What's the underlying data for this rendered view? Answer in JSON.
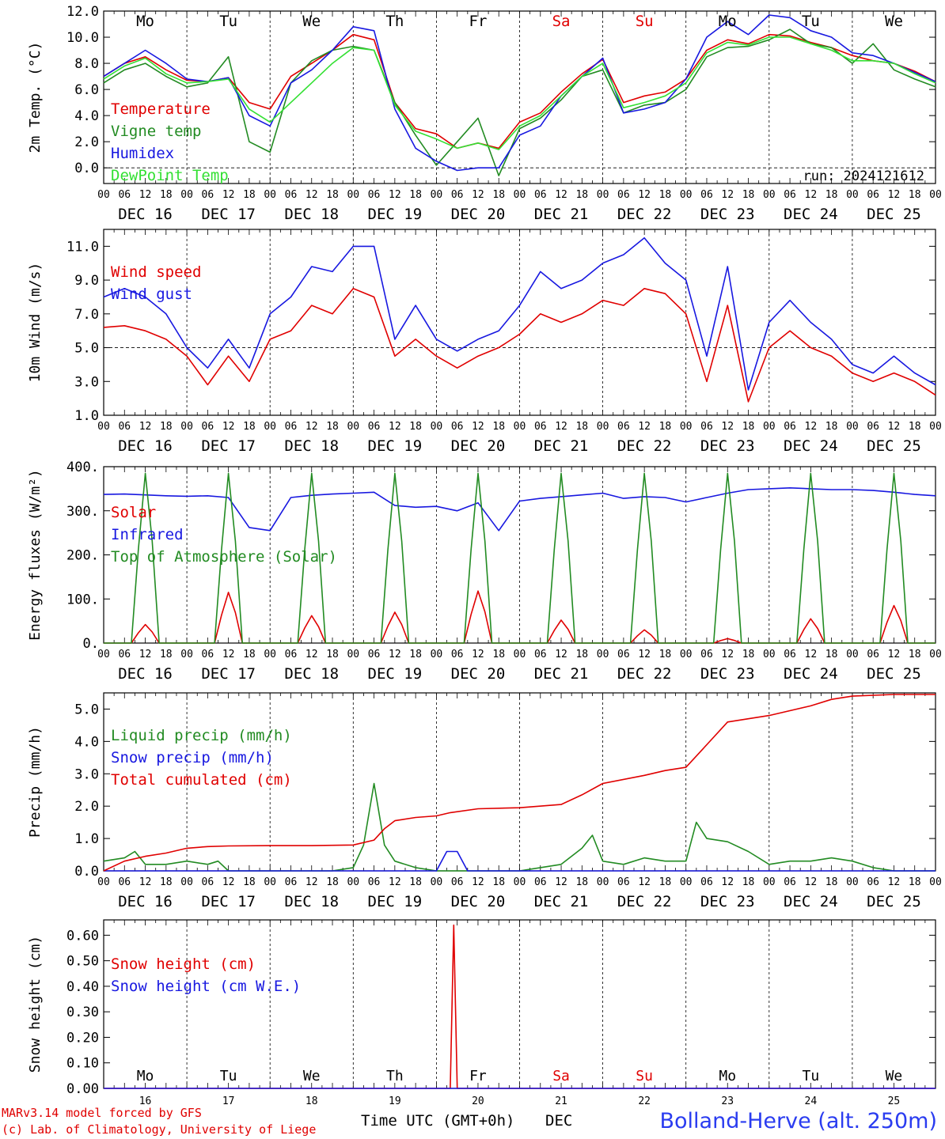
{
  "days": {
    "weekday_labels": [
      "Mo",
      "Tu",
      "We",
      "Th",
      "Fr",
      "Sa",
      "Su",
      "Mo",
      "Tu",
      "We"
    ],
    "weekday_colors": [
      "#000000",
      "#000000",
      "#000000",
      "#000000",
      "#000000",
      "#e00000",
      "#e00000",
      "#000000",
      "#000000",
      "#000000"
    ],
    "date_labels": [
      "DEC 16",
      "DEC 17",
      "DEC 18",
      "DEC 19",
      "DEC 20",
      "DEC 21",
      "DEC 22",
      "DEC 23",
      "DEC 24",
      "DEC 25"
    ],
    "day_numbers": [
      "16",
      "17",
      "18",
      "19",
      "20",
      "21",
      "22",
      "23",
      "24",
      "25"
    ],
    "hour_labels": [
      "00",
      "06",
      "12",
      "18"
    ],
    "final_hour_label": "00"
  },
  "footer": {
    "credit_line1": "MARv3.14 model forced by GFS",
    "credit_line2": "(c) Lab. of Climatology, University of Liege",
    "time_axis_label": "Time UTC (GMT+0h)",
    "month_label": "DEC",
    "station": "Bolland-Herve (alt. 250m)"
  },
  "chart_data": [
    {
      "type": "line",
      "ylabel": "2m Temp. (°C)",
      "ylim": [
        -1.2,
        12.0
      ],
      "yticks": [
        0.0,
        2.0,
        4.0,
        6.0,
        8.0,
        10.0,
        12.0
      ],
      "ytick_labels": [
        "0.0",
        "2.0",
        "4.0",
        "6.0",
        "8.0",
        "10.0",
        "12.0"
      ],
      "reference_line": 0.0,
      "annotation": "run: 2024121612",
      "x_unit": "hours from DEC 16 00 UTC",
      "xlim": [
        0,
        240
      ],
      "legend": "top-left",
      "series": [
        {
          "name": "Temperature",
          "color": "#e00000",
          "x": [
            0,
            6,
            12,
            18,
            24,
            30,
            36,
            42,
            48,
            54,
            60,
            66,
            72,
            78,
            84,
            90,
            96,
            102,
            108,
            114,
            120,
            126,
            132,
            138,
            144,
            150,
            156,
            162,
            168,
            174,
            180,
            186,
            192,
            198,
            204,
            210,
            216,
            222,
            228,
            234,
            240
          ],
          "y": [
            7.0,
            8.0,
            8.5,
            7.5,
            6.7,
            6.6,
            6.9,
            5.0,
            4.5,
            7.0,
            8.0,
            9.0,
            10.2,
            9.8,
            5.0,
            3.0,
            2.6,
            1.5,
            1.9,
            1.5,
            3.5,
            4.2,
            5.8,
            7.2,
            8.3,
            5.0,
            5.5,
            5.8,
            6.8,
            9.0,
            9.8,
            9.5,
            10.2,
            10.1,
            9.6,
            9.2,
            8.6,
            8.2,
            8.0,
            7.4,
            6.6
          ]
        },
        {
          "name": "Vigne temp",
          "color": "#228b22",
          "x": [
            0,
            6,
            12,
            18,
            24,
            30,
            36,
            42,
            48,
            54,
            60,
            66,
            72,
            78,
            84,
            90,
            96,
            102,
            108,
            114,
            120,
            126,
            132,
            138,
            144,
            150,
            156,
            162,
            168,
            174,
            180,
            186,
            192,
            198,
            204,
            210,
            216,
            222,
            228,
            234,
            240
          ],
          "y": [
            6.5,
            7.5,
            8.0,
            7.0,
            6.2,
            6.5,
            8.5,
            2.0,
            1.2,
            6.5,
            8.2,
            9.0,
            9.3,
            9.0,
            5.0,
            2.5,
            0.2,
            2.0,
            3.8,
            -0.6,
            3.0,
            3.8,
            5.2,
            7.0,
            7.5,
            4.2,
            4.8,
            5.0,
            6.0,
            8.5,
            9.2,
            9.3,
            9.8,
            10.6,
            9.5,
            9.2,
            8.0,
            9.5,
            7.5,
            6.8,
            6.2
          ]
        },
        {
          "name": "Humidex",
          "color": "#1818e0",
          "x": [
            0,
            6,
            12,
            18,
            24,
            30,
            36,
            42,
            48,
            54,
            60,
            66,
            72,
            78,
            84,
            90,
            96,
            102,
            108,
            114,
            120,
            126,
            132,
            138,
            144,
            150,
            156,
            162,
            168,
            174,
            180,
            186,
            192,
            198,
            204,
            210,
            216,
            222,
            228,
            234,
            240
          ],
          "y": [
            7.0,
            8.0,
            9.0,
            8.0,
            6.8,
            6.6,
            6.9,
            4.0,
            3.2,
            6.5,
            7.5,
            9.0,
            10.8,
            10.5,
            4.5,
            1.5,
            0.5,
            -0.2,
            0.0,
            0.0,
            2.5,
            3.2,
            5.5,
            7.0,
            8.4,
            4.2,
            4.5,
            5.0,
            6.8,
            10.0,
            11.2,
            10.2,
            11.7,
            11.5,
            10.5,
            10.0,
            8.8,
            8.6,
            8.0,
            7.3,
            6.6
          ]
        },
        {
          "name": "DewPoint Temp",
          "color": "#33e033",
          "x": [
            0,
            6,
            12,
            18,
            24,
            30,
            36,
            42,
            48,
            54,
            60,
            66,
            72,
            78,
            84,
            90,
            96,
            102,
            108,
            114,
            120,
            126,
            132,
            138,
            144,
            150,
            156,
            162,
            168,
            174,
            180,
            186,
            192,
            198,
            204,
            210,
            216,
            222,
            228,
            234,
            240
          ],
          "y": [
            6.8,
            7.8,
            8.4,
            7.2,
            6.5,
            6.6,
            6.8,
            4.5,
            3.5,
            5.0,
            6.5,
            8.0,
            9.2,
            9.0,
            4.8,
            2.8,
            2.2,
            1.5,
            1.9,
            1.4,
            3.2,
            4.0,
            5.5,
            7.0,
            8.0,
            4.6,
            5.0,
            5.5,
            6.5,
            8.8,
            9.6,
            9.4,
            10.0,
            10.0,
            9.5,
            9.0,
            8.2,
            8.2,
            8.0,
            7.2,
            6.5
          ]
        }
      ]
    },
    {
      "type": "line",
      "ylabel": "10m Wind (m/s)",
      "ylim": [
        1.0,
        12.0
      ],
      "yticks": [
        1.0,
        3.0,
        5.0,
        7.0,
        9.0,
        11.0
      ],
      "ytick_labels": [
        "1.0",
        "3.0",
        "5.0",
        "7.0",
        "9.0",
        "11.0"
      ],
      "reference_line": 5.0,
      "x_unit": "hours from DEC 16 00 UTC",
      "xlim": [
        0,
        240
      ],
      "legend": "top-left",
      "series": [
        {
          "name": "Wind speed",
          "color": "#e00000",
          "x": [
            0,
            6,
            12,
            18,
            24,
            30,
            36,
            42,
            48,
            54,
            60,
            66,
            72,
            78,
            84,
            90,
            96,
            102,
            108,
            114,
            120,
            126,
            132,
            138,
            144,
            150,
            156,
            162,
            168,
            174,
            180,
            186,
            192,
            198,
            204,
            210,
            216,
            222,
            228,
            234,
            240
          ],
          "y": [
            6.2,
            6.3,
            6.0,
            5.5,
            4.5,
            2.8,
            4.5,
            3.0,
            5.5,
            6.0,
            7.5,
            7.0,
            8.5,
            8.0,
            4.5,
            5.5,
            4.5,
            3.8,
            4.5,
            5.0,
            5.8,
            7.0,
            6.5,
            7.0,
            7.8,
            7.5,
            8.5,
            8.2,
            7.0,
            3.0,
            7.5,
            1.8,
            5.0,
            6.0,
            5.0,
            4.5,
            3.5,
            3.0,
            3.5,
            3.0,
            2.2
          ]
        },
        {
          "name": "Wind gust",
          "color": "#1818e0",
          "x": [
            0,
            6,
            12,
            18,
            24,
            30,
            36,
            42,
            48,
            54,
            60,
            66,
            72,
            78,
            84,
            90,
            96,
            102,
            108,
            114,
            120,
            126,
            132,
            138,
            144,
            150,
            156,
            162,
            168,
            174,
            180,
            186,
            192,
            198,
            204,
            210,
            216,
            222,
            228,
            234,
            240
          ],
          "y": [
            8.0,
            8.5,
            8.0,
            7.0,
            5.0,
            3.8,
            5.5,
            3.8,
            7.0,
            8.0,
            9.8,
            9.5,
            11.0,
            11.0,
            5.5,
            7.5,
            5.5,
            4.8,
            5.5,
            6.0,
            7.5,
            9.5,
            8.5,
            9.0,
            10.0,
            10.5,
            11.5,
            10.0,
            9.0,
            4.5,
            9.8,
            2.5,
            6.5,
            7.8,
            6.5,
            5.5,
            4.0,
            3.5,
            4.5,
            3.5,
            2.8
          ]
        }
      ]
    },
    {
      "type": "line",
      "ylabel": "Energy fluxes (W/m²)",
      "ylim": [
        0,
        400
      ],
      "yticks": [
        0,
        100,
        200,
        300,
        400
      ],
      "ytick_labels": [
        "0.",
        "100.",
        "200.",
        "300.",
        "400."
      ],
      "x_unit": "hours from DEC 16 00 UTC",
      "xlim": [
        0,
        240
      ],
      "legend": "top-left",
      "series": [
        {
          "name": "Solar",
          "color": "#e00000",
          "solar_peaks": [
            42,
            115,
            62,
            70,
            118,
            52,
            30,
            10,
            55,
            85
          ]
        },
        {
          "name": "Infrared",
          "color": "#1818e0",
          "x": [
            0,
            6,
            12,
            18,
            24,
            30,
            36,
            42,
            48,
            54,
            60,
            66,
            72,
            78,
            84,
            90,
            96,
            102,
            108,
            114,
            120,
            126,
            132,
            138,
            144,
            150,
            156,
            162,
            168,
            174,
            180,
            186,
            192,
            198,
            204,
            210,
            216,
            222,
            228,
            234,
            240
          ],
          "y": [
            337,
            338,
            336,
            334,
            333,
            334,
            330,
            262,
            255,
            330,
            335,
            338,
            340,
            342,
            312,
            308,
            310,
            300,
            318,
            255,
            322,
            328,
            332,
            336,
            340,
            328,
            332,
            330,
            320,
            330,
            340,
            348,
            350,
            352,
            350,
            348,
            348,
            346,
            342,
            337,
            334
          ]
        },
        {
          "name": "Top of Atmosphere (Solar)",
          "color": "#228b22",
          "solar_peak": 385
        }
      ]
    },
    {
      "type": "line",
      "ylabel": "Precip (mm/h)",
      "ylim": [
        0,
        5.5
      ],
      "yticks": [
        0.0,
        1.0,
        2.0,
        3.0,
        4.0,
        5.0
      ],
      "ytick_labels": [
        "0.0",
        "1.0",
        "2.0",
        "3.0",
        "4.0",
        "5.0"
      ],
      "x_unit": "hours from DEC 16 00 UTC",
      "xlim": [
        0,
        240
      ],
      "legend": "top-left",
      "series": [
        {
          "name": "Liquid precip (mm/h)",
          "color": "#228b22",
          "x": [
            0,
            6,
            9,
            12,
            18,
            24,
            30,
            33,
            36,
            42,
            48,
            54,
            60,
            66,
            72,
            75,
            78,
            81,
            84,
            90,
            96,
            102,
            108,
            114,
            120,
            126,
            132,
            138,
            141,
            144,
            150,
            156,
            162,
            168,
            171,
            174,
            180,
            186,
            192,
            198,
            204,
            210,
            216,
            222,
            228,
            234,
            240
          ],
          "y": [
            0.3,
            0.4,
            0.6,
            0.2,
            0.2,
            0.3,
            0.2,
            0.3,
            0.0,
            0.0,
            0.0,
            0.0,
            0.0,
            0.0,
            0.1,
            0.8,
            2.7,
            0.8,
            0.3,
            0.1,
            0.0,
            0.0,
            0.0,
            0.0,
            0.0,
            0.1,
            0.2,
            0.7,
            1.1,
            0.3,
            0.2,
            0.4,
            0.3,
            0.3,
            1.5,
            1.0,
            0.9,
            0.6,
            0.2,
            0.3,
            0.3,
            0.4,
            0.3,
            0.1,
            0.0,
            0.0,
            0.0
          ]
        },
        {
          "name": "Snow precip (mm/h)",
          "color": "#1818e0",
          "x": [
            0,
            96,
            99,
            102,
            105,
            240
          ],
          "y": [
            0,
            0,
            0.6,
            0.6,
            0,
            0
          ]
        },
        {
          "name": "Total cumulated (cm)",
          "color": "#e00000",
          "x": [
            0,
            6,
            12,
            18,
            24,
            30,
            36,
            48,
            60,
            72,
            78,
            81,
            84,
            90,
            96,
            100,
            108,
            120,
            132,
            138,
            144,
            156,
            162,
            168,
            174,
            180,
            192,
            204,
            210,
            216,
            228,
            240
          ],
          "y": [
            0.0,
            0.3,
            0.45,
            0.55,
            0.7,
            0.75,
            0.77,
            0.78,
            0.78,
            0.8,
            0.95,
            1.3,
            1.55,
            1.65,
            1.7,
            1.8,
            1.92,
            1.95,
            2.05,
            2.35,
            2.7,
            2.95,
            3.1,
            3.2,
            3.9,
            4.6,
            4.8,
            5.1,
            5.3,
            5.4,
            5.45,
            5.45
          ]
        }
      ]
    },
    {
      "type": "line",
      "ylabel": "Snow height (cm)",
      "ylim": [
        0,
        0.66
      ],
      "yticks": [
        0.0,
        0.1,
        0.2,
        0.3,
        0.4,
        0.5,
        0.6
      ],
      "ytick_labels": [
        "0.00",
        "0.10",
        "0.20",
        "0.30",
        "0.40",
        "0.50",
        "0.60"
      ],
      "x_unit": "hours from DEC 16 00 UTC",
      "xlim": [
        0,
        240
      ],
      "legend": "top-left",
      "series": [
        {
          "name": "Snow height (cm)",
          "color": "#e00000",
          "x": [
            0,
            100,
            101,
            102,
            240
          ],
          "y": [
            0,
            0,
            0.64,
            0,
            0
          ]
        },
        {
          "name": "Snow height (cm W.E.)",
          "color": "#1818e0",
          "x": [
            0,
            240
          ],
          "y": [
            0,
            0
          ]
        }
      ]
    }
  ]
}
